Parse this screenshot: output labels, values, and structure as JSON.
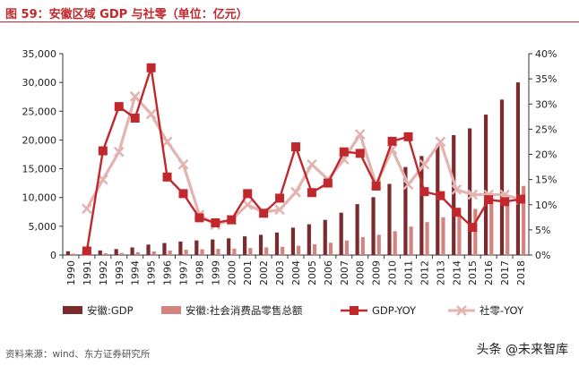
{
  "header": {
    "title": "图 59：安徽区域 GDP 与社零（单位：亿元）"
  },
  "footer": {
    "source": "资料来源：wind、东方证券研究所",
    "watermark": "头条 @未来智库"
  },
  "colors": {
    "gdp_bar": "#7b2a2e",
    "retail_bar": "#d4847f",
    "gdp_yoy": "#c0282d",
    "retail_yoy": "#e3b3b0",
    "title": "#c0282d"
  },
  "chart_data": {
    "type": "bar",
    "title": "安徽区域 GDP 与社零（单位：亿元）",
    "categories": [
      "1990",
      "1991",
      "1992",
      "1993",
      "1994",
      "1995",
      "1996",
      "1997",
      "1998",
      "1999",
      "2000",
      "2001",
      "2002",
      "2003",
      "2004",
      "2005",
      "2006",
      "2007",
      "2008",
      "2009",
      "2010",
      "2011",
      "2012",
      "2013",
      "2014",
      "2015",
      "2016",
      "2017",
      "2018"
    ],
    "left_axis": {
      "min": 0,
      "max": 35000,
      "step": 5000,
      "tick_labels": [
        "0",
        "5,000",
        "10,000",
        "15,000",
        "20,000",
        "25,000",
        "30,000",
        "35,000"
      ]
    },
    "right_axis": {
      "min": 0,
      "max": 40,
      "step": 5,
      "tick_labels": [
        "0%",
        "5%",
        "10%",
        "15%",
        "20%",
        "25%",
        "30%",
        "35%",
        "40%"
      ]
    },
    "series": [
      {
        "name": "安徽:GDP",
        "kind": "bar",
        "axis": "left",
        "values": [
          660,
          670,
          800,
          1040,
          1320,
          1820,
          2090,
          2350,
          2540,
          2710,
          2900,
          3250,
          3520,
          3920,
          4760,
          5350,
          6110,
          7360,
          8850,
          10060,
          12360,
          15300,
          17210,
          19230,
          20850,
          22010,
          24410,
          27020,
          30010
        ]
      },
      {
        "name": "安徽:社会消费品零售总额",
        "kind": "bar",
        "axis": "left",
        "values": [
          230,
          260,
          300,
          360,
          470,
          620,
          780,
          920,
          1000,
          1060,
          1120,
          1220,
          1330,
          1440,
          1610,
          1860,
          2140,
          2520,
          3130,
          3530,
          4150,
          4950,
          5730,
          6570,
          7420,
          8020,
          9110,
          10100,
          12020
        ]
      },
      {
        "name": "GDP-YOY",
        "kind": "line",
        "axis": "right",
        "marker": "square",
        "values": [
          null,
          0.8,
          20.7,
          29.5,
          27.2,
          37.2,
          15.5,
          12.2,
          7.4,
          6.4,
          7.0,
          12.2,
          8.3,
          11.3,
          21.5,
          12.4,
          14.3,
          20.5,
          20.2,
          13.7,
          22.6,
          23.5,
          12.6,
          11.8,
          8.5,
          5.5,
          11.0,
          10.6,
          11.1
        ]
      },
      {
        "name": "社零-YOY",
        "kind": "line",
        "axis": "right",
        "marker": "x",
        "values": [
          null,
          9.2,
          15.0,
          20.5,
          31.5,
          28.0,
          22.5,
          18.0,
          8.0,
          6.0,
          7.0,
          10.0,
          8.5,
          9.0,
          12.5,
          18.0,
          15.0,
          19.0,
          24.0,
          14.0,
          21.0,
          14.0,
          18.0,
          22.5,
          13.0,
          12.0,
          12.0,
          12.0,
          11.0
        ]
      }
    ],
    "legend": [
      "安徽:GDP",
      "安徽:社会消费品零售总额",
      "GDP-YOY",
      "社零-YOY"
    ],
    "legend_position": "bottom"
  }
}
